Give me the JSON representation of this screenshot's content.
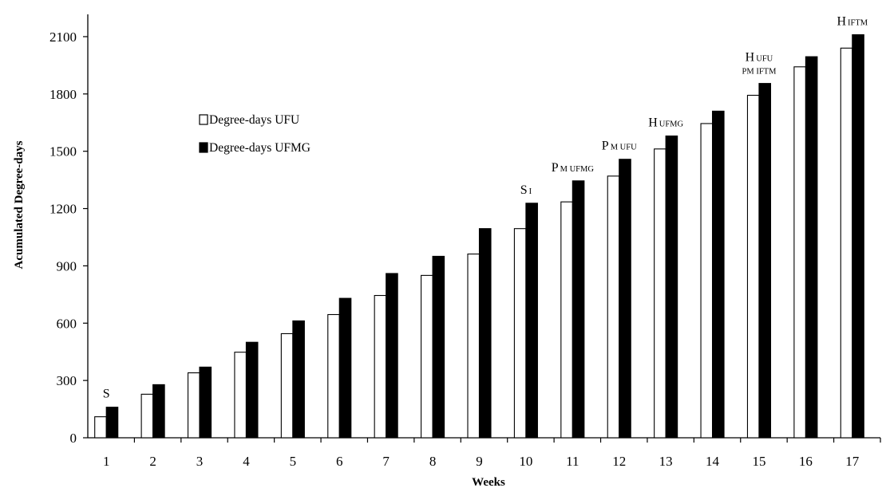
{
  "chart_data": {
    "type": "bar",
    "xlabel": "Weeks",
    "ylabel": "Acumulated Degree-days",
    "ylim": [
      0,
      2200
    ],
    "yticks": [
      0,
      300,
      600,
      900,
      1200,
      1500,
      1800,
      2100
    ],
    "categories": [
      "1",
      "2",
      "3",
      "4",
      "5",
      "6",
      "7",
      "8",
      "9",
      "10",
      "11",
      "12",
      "13",
      "14",
      "15",
      "16",
      "17"
    ],
    "series": [
      {
        "name": "Degree-days UFU",
        "fill": "#ffffff",
        "values": [
          110,
          228,
          340,
          448,
          545,
          645,
          745,
          850,
          962,
          1095,
          1235,
          1370,
          1512,
          1645,
          1793,
          1942,
          2040
        ]
      },
      {
        "name": "Degree-days UFMG",
        "fill": "#000000",
        "values": [
          160,
          278,
          370,
          500,
          612,
          730,
          860,
          950,
          1095,
          1228,
          1345,
          1458,
          1580,
          1710,
          1855,
          1995,
          2110
        ]
      }
    ],
    "legend_position": "upper-left",
    "grid": false,
    "annotations": [
      {
        "week": "1",
        "big": "S",
        "small": ""
      },
      {
        "week": "10",
        "big": "S",
        "small": "I"
      },
      {
        "week": "11",
        "big": "P",
        "small": "M UFMG"
      },
      {
        "week": "12",
        "big": "P",
        "small": "M UFU"
      },
      {
        "week": "13",
        "big": "H",
        "small": "UFMG"
      },
      {
        "week": "15",
        "big": "H",
        "small": "UFU",
        "line2": "PM IFTM"
      },
      {
        "week": "17",
        "big": "H",
        "small": "IFTM"
      }
    ]
  },
  "colors": {
    "axis": "#000000",
    "bar_outline": "#000000"
  }
}
